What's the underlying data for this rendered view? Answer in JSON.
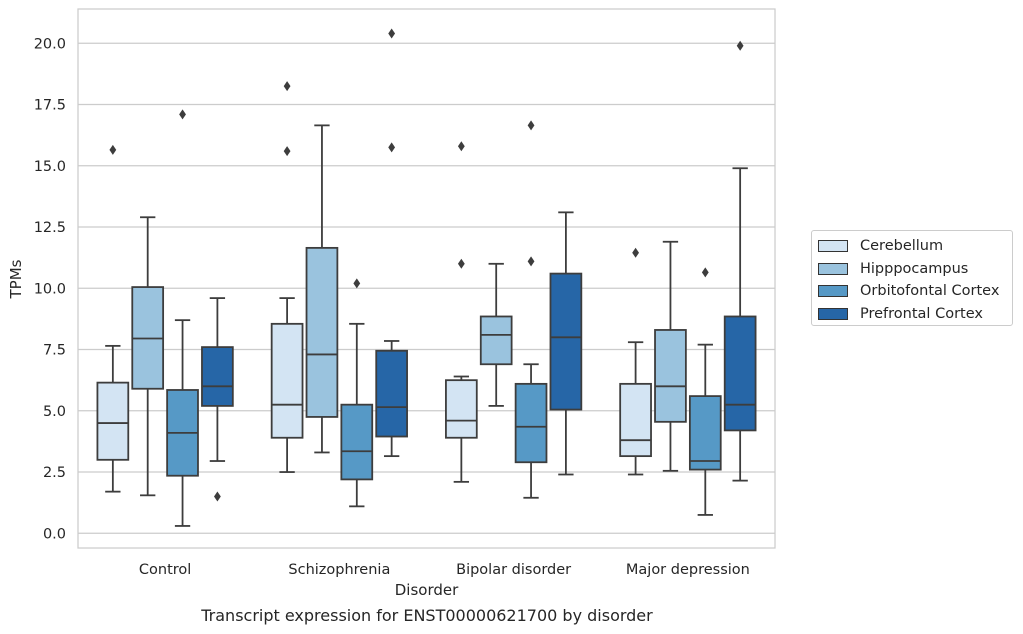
{
  "caption": "Transcript expression for ENST00000621700 by disorder",
  "chart_data": {
    "type": "box",
    "xlabel": "Disorder",
    "ylabel": "TPMs",
    "ylim": [
      -0.6,
      21.4
    ],
    "yticks": [
      0.0,
      2.5,
      5.0,
      7.5,
      10.0,
      12.5,
      15.0,
      17.5,
      20.0
    ],
    "ytick_labels": [
      "0.0",
      "2.5",
      "5.0",
      "7.5",
      "10.0",
      "12.5",
      "15.0",
      "17.5",
      "20.0"
    ],
    "grid": "horizontal",
    "legend_position": "right",
    "categories": [
      "Control",
      "Schizophrenia",
      "Bipolar disorder",
      "Major depression"
    ],
    "series": [
      {
        "name": "Cerebellum",
        "color": "#d3e4f3",
        "boxes": [
          {
            "whislo": 1.7,
            "q1": 3.0,
            "med": 4.5,
            "q3": 6.15,
            "whishi": 7.65,
            "fliers": [
              15.65
            ]
          },
          {
            "whislo": 2.5,
            "q1": 3.9,
            "med": 5.25,
            "q3": 8.55,
            "whishi": 9.6,
            "fliers": [
              15.6,
              18.25
            ]
          },
          {
            "whislo": 2.1,
            "q1": 3.9,
            "med": 4.6,
            "q3": 6.25,
            "whishi": 6.4,
            "fliers": [
              11.0,
              15.8
            ]
          },
          {
            "whislo": 2.4,
            "q1": 3.15,
            "med": 3.8,
            "q3": 6.1,
            "whishi": 7.8,
            "fliers": [
              11.45
            ]
          }
        ]
      },
      {
        "name": "Hipppocampus",
        "color": "#9ac3de",
        "boxes": [
          {
            "whislo": 1.55,
            "q1": 5.9,
            "med": 7.95,
            "q3": 10.05,
            "whishi": 12.9,
            "fliers": []
          },
          {
            "whislo": 3.3,
            "q1": 4.75,
            "med": 7.3,
            "q3": 11.65,
            "whishi": 16.65,
            "fliers": []
          },
          {
            "whislo": 5.2,
            "q1": 6.9,
            "med": 8.1,
            "q3": 8.85,
            "whishi": 11.0,
            "fliers": []
          },
          {
            "whislo": 2.55,
            "q1": 4.55,
            "med": 6.0,
            "q3": 8.3,
            "whishi": 11.9,
            "fliers": []
          }
        ]
      },
      {
        "name": "Orbitofontal Cortex",
        "color": "#5699c6",
        "boxes": [
          {
            "whislo": 0.3,
            "q1": 2.35,
            "med": 4.1,
            "q3": 5.85,
            "whishi": 8.7,
            "fliers": [
              17.1
            ]
          },
          {
            "whislo": 1.1,
            "q1": 2.2,
            "med": 3.35,
            "q3": 5.25,
            "whishi": 8.55,
            "fliers": [
              10.2
            ]
          },
          {
            "whislo": 1.45,
            "q1": 2.9,
            "med": 4.35,
            "q3": 6.1,
            "whishi": 6.9,
            "fliers": [
              11.1,
              16.65
            ]
          },
          {
            "whislo": 0.75,
            "q1": 2.6,
            "med": 2.95,
            "q3": 5.6,
            "whishi": 7.7,
            "fliers": [
              10.65
            ]
          }
        ]
      },
      {
        "name": "Prefrontal Cortex",
        "color": "#2666a7",
        "boxes": [
          {
            "whislo": 2.95,
            "q1": 5.2,
            "med": 6.0,
            "q3": 7.6,
            "whishi": 9.6,
            "fliers": [
              1.5
            ]
          },
          {
            "whislo": 3.15,
            "q1": 3.95,
            "med": 5.15,
            "q3": 7.45,
            "whishi": 7.85,
            "fliers": [
              15.75,
              20.4
            ]
          },
          {
            "whislo": 2.4,
            "q1": 5.05,
            "med": 8.0,
            "q3": 10.6,
            "whishi": 13.1,
            "fliers": []
          },
          {
            "whislo": 2.15,
            "q1": 4.2,
            "med": 5.25,
            "q3": 8.85,
            "whishi": 14.9,
            "fliers": [
              19.9
            ]
          }
        ]
      }
    ]
  }
}
